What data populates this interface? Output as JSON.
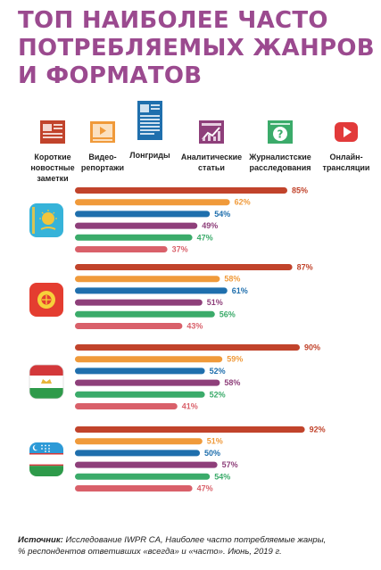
{
  "title": {
    "line1": "ТОП НАИБОЛЕЕ ЧАСТО",
    "line2": "ПОТРЕБЛЯЕМЫХ ЖАНРОВ",
    "line3": "И ФОРМАТОВ"
  },
  "colors": {
    "title": "#9b4a8f",
    "series": [
      "#c1432b",
      "#f09a3a",
      "#1f6fad",
      "#8e3f7a",
      "#3bab6a",
      "#d9606a"
    ]
  },
  "categories": [
    {
      "label_line1": "Короткие",
      "label_line2": "новостные",
      "label_line3": "заметки",
      "icon": "news-note-icon",
      "color": "#c1432b"
    },
    {
      "label_line1": "Видео-",
      "label_line2": "репортажи",
      "label_line3": "",
      "icon": "video-report-icon",
      "color": "#f09a3a"
    },
    {
      "label_line1": "Лонгриды",
      "label_line2": "",
      "label_line3": "",
      "icon": "longread-icon",
      "color": "#1f6fad"
    },
    {
      "label_line1": "Аналитические",
      "label_line2": "статьи",
      "label_line3": "",
      "icon": "analytics-chart-icon",
      "color": "#8e3f7a"
    },
    {
      "label_line1": "Журналистские",
      "label_line2": "расследования",
      "label_line3": "",
      "icon": "investigation-question-icon",
      "color": "#3bab6a"
    },
    {
      "label_line1": "Онлайн-",
      "label_line2": "трансляции",
      "label_line3": "",
      "icon": "online-stream-play-icon",
      "color": "#e23a3a"
    }
  ],
  "chart_data": {
    "type": "bar",
    "orientation": "horizontal",
    "unit": "%",
    "xlim": [
      0,
      100
    ],
    "series": [
      "Короткие новостные заметки",
      "Видео-репортажи",
      "Лонгриды",
      "Аналитические статьи",
      "Журналистские расследования",
      "Онлайн-трансляции"
    ],
    "groups": [
      {
        "flag": "kazakhstan-flag-icon",
        "values": [
          85,
          62,
          54,
          49,
          47,
          37
        ],
        "labels": [
          "85%",
          "62%",
          "54%",
          "49%",
          "47%",
          "37%"
        ]
      },
      {
        "flag": "kyrgyzstan-flag-icon",
        "values": [
          87,
          58,
          61,
          51,
          56,
          43
        ],
        "labels": [
          "87%",
          "58%",
          "61%",
          "51%",
          "56%",
          "43%"
        ]
      },
      {
        "flag": "tajikistan-flag-icon",
        "values": [
          90,
          59,
          52,
          58,
          52,
          41
        ],
        "labels": [
          "90%",
          "59%",
          "52%",
          "58%",
          "52%",
          "41%"
        ]
      },
      {
        "flag": "uzbekistan-flag-icon",
        "values": [
          92,
          51,
          50,
          57,
          54,
          47
        ],
        "labels": [
          "92%",
          "51%",
          "50%",
          "57%",
          "54%",
          "47%"
        ]
      }
    ]
  },
  "footer": {
    "bold": "Источник:",
    "line1": " Исследование IWPR CA, Наиболее часто потребляемые жанры,",
    "line2": "% респондентов ответивших «всегда» и «часто». Июнь, 2019 г."
  }
}
